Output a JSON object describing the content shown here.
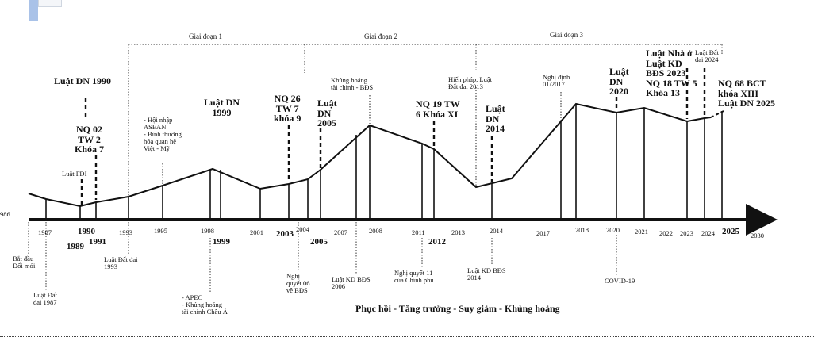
{
  "phases": [
    "Giai đoạn 1",
    "Giai đoạn 2",
    "Giai đoạn 3"
  ],
  "axis": {
    "start_label": "986",
    "years": [
      {
        "t": "1987"
      },
      {
        "t": "1990"
      },
      {
        "t": "1993"
      },
      {
        "t": "1995"
      },
      {
        "t": "1998"
      },
      {
        "t": "2001"
      },
      {
        "t": "2004"
      },
      {
        "t": "2007"
      },
      {
        "t": "2008"
      },
      {
        "t": "2011"
      },
      {
        "t": "2013"
      },
      {
        "t": "2014"
      },
      {
        "t": "2017"
      },
      {
        "t": "2018"
      },
      {
        "t": "2020"
      },
      {
        "t": "2021"
      },
      {
        "t": "2022"
      },
      {
        "t": "2023"
      },
      {
        "t": "2024"
      },
      {
        "t": "2025"
      },
      {
        "t": "2030"
      }
    ],
    "bold_years": [
      "1989",
      "1991",
      "1999",
      "2003",
      "2005",
      "2012"
    ]
  },
  "upper_labels": {
    "dn1990": "Luật DN 1990",
    "nq02": "NQ 02\nTW 2\nKhóa 7",
    "fdi": "Luật FDI",
    "asean": "- Hội nhập\nASEAN\n- Bình thường\nhóa quan hệ\nViệt - Mỹ",
    "dn1999": "Luật DN\n1999",
    "nq26": "NQ 26\nTW 7\nkhóa 9",
    "dn2005": "Luật\nDN\n2005",
    "khunghoang": "Khủng hoảng\ntài chính - BĐS",
    "nq19": "NQ 19 TW\n6 Khóa XI",
    "hienphap": "Hiến pháp, Luật\nĐất đai 2013",
    "dn2014": "Luật\nDN\n2014",
    "nghidinh": "Nghị định\n01/2017",
    "dn2020": "Luật\nDN\n2020",
    "nhao": "Luật Nhà ở\nLuật KD\nBĐS 2023\nNQ 18 TW 5\nKhóa 13",
    "datdai2024": "Luật Đất\nđai 2024",
    "nq68": "NQ 68 BCT\nkhóa XIII\nLuật DN 2025"
  },
  "lower_labels": {
    "batdau": "Bắt đầu\nĐổi mới",
    "datdai1987": "Luật Đất\nđai 1987",
    "datdai1993": "Luật Đất đai\n1993",
    "apec": "- APEC\n- Khủng hoảng\ntài chính Châu Á",
    "nq06": "Nghị\nquyết 06\nvề BĐS",
    "kdbds2006": "Luật KD BĐS\n2006",
    "nq11": "Nghị quyết 11\ncủa Chính phủ",
    "kdbds2014": "Luật KD BĐS\n2014",
    "covid": "COVID-19"
  },
  "caption": "Phục hồi - Tăng trưởng - Suy giảm - Khủng hoảng"
}
